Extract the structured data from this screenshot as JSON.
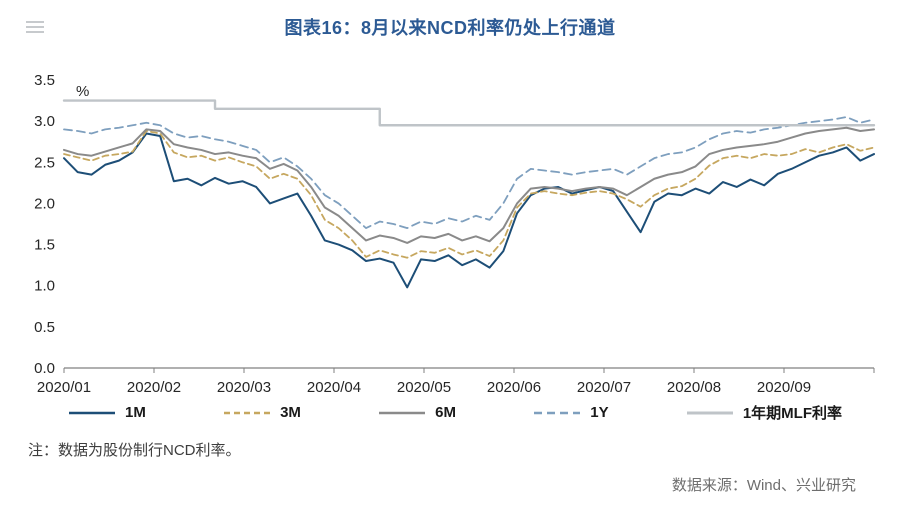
{
  "note": "注：数据为股份制行NCD利率。",
  "source": "数据来源：Wind、兴业研究",
  "chart_data": {
    "type": "line",
    "title": "图表16：8月以来NCD利率仍处上行通道",
    "ylabel": "%",
    "ylim": [
      0.0,
      3.5
    ],
    "yticks": [
      0.0,
      0.5,
      1.0,
      1.5,
      2.0,
      2.5,
      3.0,
      3.5
    ],
    "x_range": [
      0,
      9
    ],
    "x_note": "x in months since 2020/01; each series has 60 evenly spaced samples from 2020-01-01 to 2020-09-30",
    "xtick_labels": [
      "2020/01",
      "2020/02",
      "2020/03",
      "2020/04",
      "2020/05",
      "2020/06",
      "2020/07",
      "2020/08",
      "2020/09"
    ],
    "grid": false,
    "legend_position": "bottom",
    "series": [
      {
        "name": "1M",
        "color": "#1d4e77",
        "dash": null,
        "width": 2,
        "step": false,
        "values": [
          2.55,
          2.38,
          2.35,
          2.47,
          2.52,
          2.62,
          2.85,
          2.82,
          2.27,
          2.3,
          2.22,
          2.31,
          2.24,
          2.27,
          2.2,
          2.0,
          2.06,
          2.12,
          1.85,
          1.55,
          1.5,
          1.43,
          1.3,
          1.33,
          1.28,
          0.98,
          1.32,
          1.3,
          1.37,
          1.25,
          1.32,
          1.22,
          1.42,
          1.88,
          2.1,
          2.18,
          2.2,
          2.12,
          2.16,
          2.2,
          2.15,
          1.9,
          1.65,
          2.02,
          2.12,
          2.1,
          2.18,
          2.12,
          2.26,
          2.2,
          2.29,
          2.22,
          2.36,
          2.42,
          2.5,
          2.58,
          2.62,
          2.68,
          2.52,
          2.6
        ]
      },
      {
        "name": "3M",
        "color": "#c6a75f",
        "dash": "6,4",
        "width": 1.8,
        "step": false,
        "values": [
          2.6,
          2.56,
          2.52,
          2.58,
          2.6,
          2.63,
          2.88,
          2.85,
          2.62,
          2.56,
          2.58,
          2.52,
          2.56,
          2.5,
          2.45,
          2.3,
          2.36,
          2.3,
          2.1,
          1.8,
          1.7,
          1.55,
          1.35,
          1.43,
          1.38,
          1.34,
          1.42,
          1.4,
          1.46,
          1.38,
          1.43,
          1.36,
          1.55,
          1.95,
          2.12,
          2.15,
          2.12,
          2.1,
          2.13,
          2.15,
          2.12,
          2.05,
          1.96,
          2.1,
          2.18,
          2.21,
          2.3,
          2.46,
          2.55,
          2.58,
          2.55,
          2.6,
          2.58,
          2.6,
          2.66,
          2.62,
          2.68,
          2.72,
          2.64,
          2.68
        ]
      },
      {
        "name": "6M",
        "color": "#8a8a8a",
        "dash": null,
        "width": 2,
        "step": false,
        "values": [
          2.65,
          2.6,
          2.58,
          2.63,
          2.68,
          2.73,
          2.9,
          2.88,
          2.72,
          2.68,
          2.65,
          2.6,
          2.62,
          2.58,
          2.55,
          2.42,
          2.48,
          2.4,
          2.2,
          1.95,
          1.85,
          1.7,
          1.55,
          1.61,
          1.58,
          1.52,
          1.6,
          1.58,
          1.63,
          1.55,
          1.6,
          1.54,
          1.7,
          2.0,
          2.18,
          2.2,
          2.18,
          2.15,
          2.18,
          2.2,
          2.18,
          2.1,
          2.2,
          2.3,
          2.35,
          2.38,
          2.45,
          2.6,
          2.65,
          2.68,
          2.7,
          2.72,
          2.75,
          2.8,
          2.85,
          2.88,
          2.9,
          2.92,
          2.88,
          2.9
        ]
      },
      {
        "name": "1Y",
        "color": "#7e9fbe",
        "dash": "8,5",
        "width": 1.8,
        "step": false,
        "values": [
          2.9,
          2.88,
          2.85,
          2.9,
          2.92,
          2.95,
          2.98,
          2.95,
          2.85,
          2.8,
          2.82,
          2.78,
          2.75,
          2.7,
          2.65,
          2.5,
          2.56,
          2.45,
          2.3,
          2.1,
          2.0,
          1.85,
          1.7,
          1.78,
          1.75,
          1.7,
          1.78,
          1.75,
          1.82,
          1.78,
          1.85,
          1.8,
          2.0,
          2.3,
          2.42,
          2.4,
          2.38,
          2.35,
          2.38,
          2.4,
          2.42,
          2.35,
          2.45,
          2.55,
          2.6,
          2.62,
          2.68,
          2.78,
          2.85,
          2.88,
          2.86,
          2.9,
          2.92,
          2.95,
          2.98,
          3.0,
          3.02,
          3.05,
          2.98,
          3.02
        ]
      },
      {
        "name": "1年期MLF利率",
        "color": "#bfc4c8",
        "dash": null,
        "width": 2.4,
        "step": true,
        "values": [
          3.25,
          3.25,
          3.25,
          3.25,
          3.25,
          3.25,
          3.25,
          3.25,
          3.25,
          3.25,
          3.25,
          3.15,
          3.15,
          3.15,
          3.15,
          3.15,
          3.15,
          3.15,
          3.15,
          3.15,
          3.15,
          3.15,
          3.15,
          2.95,
          2.95,
          2.95,
          2.95,
          2.95,
          2.95,
          2.95,
          2.95,
          2.95,
          2.95,
          2.95,
          2.95,
          2.95,
          2.95,
          2.95,
          2.95,
          2.95,
          2.95,
          2.95,
          2.95,
          2.95,
          2.95,
          2.95,
          2.95,
          2.95,
          2.95,
          2.95,
          2.95,
          2.95,
          2.95,
          2.95,
          2.95,
          2.95,
          2.95,
          2.95,
          2.95,
          2.95
        ]
      }
    ]
  }
}
